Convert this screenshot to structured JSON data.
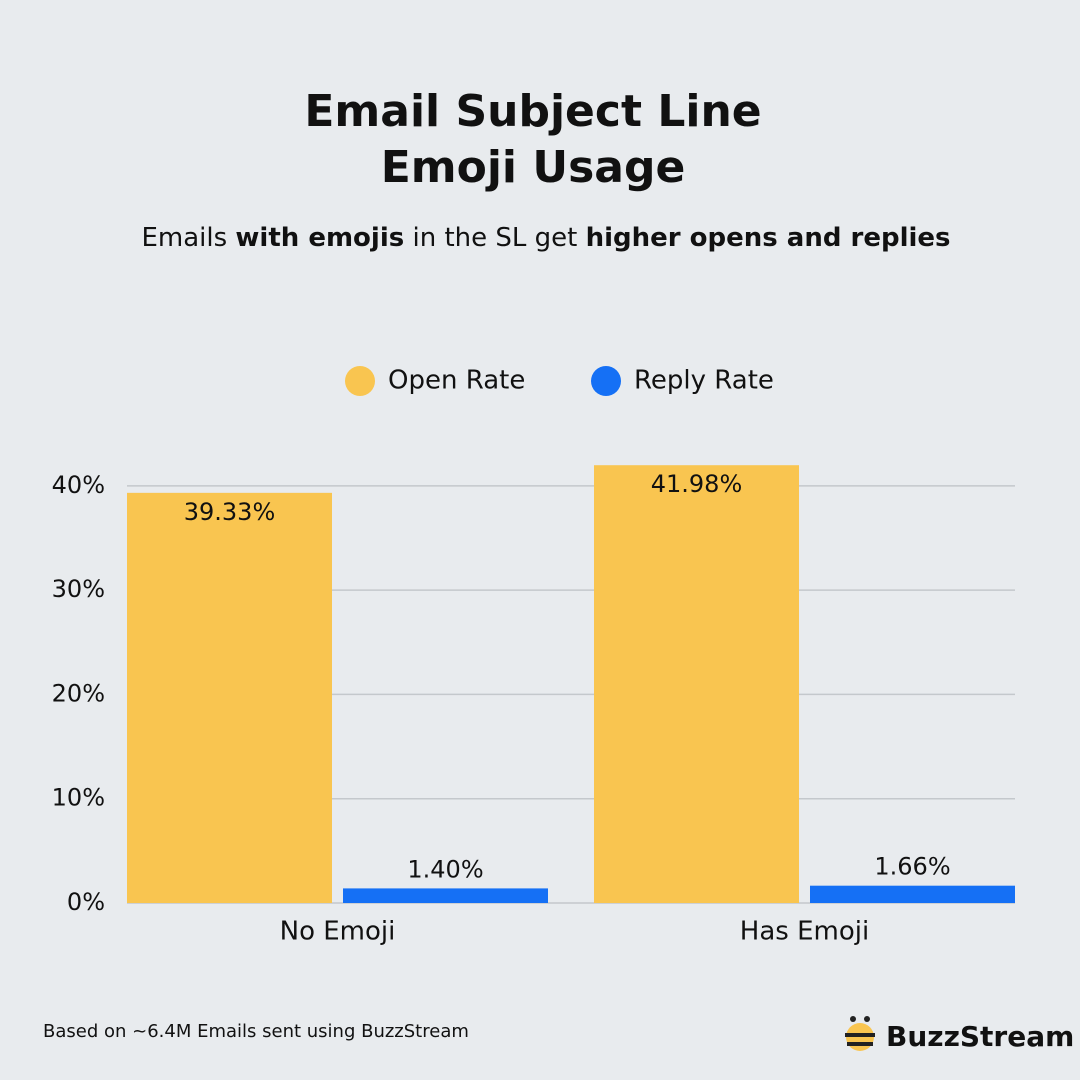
{
  "chart_data": {
    "type": "bar",
    "title": [
      "Email Subject Line",
      "Emoji Usage"
    ],
    "subtitle": [
      "Emails ",
      "with emojis",
      " in the SL get ",
      "higher opens and replies"
    ],
    "categories": [
      "No Emoji",
      "Has Emoji"
    ],
    "series": [
      {
        "name": "Open Rate",
        "color": "#f9c550",
        "values": [
          39.33,
          41.98
        ],
        "value_labels": [
          "39.33%",
          "41.98%"
        ]
      },
      {
        "name": "Reply Rate",
        "color": "#1570f5",
        "values": [
          1.4,
          1.66
        ],
        "value_labels": [
          "1.40%",
          "1.66%"
        ]
      }
    ],
    "ylim": [
      0,
      42
    ],
    "yticks": [
      {
        "value": 0,
        "label": "0%"
      },
      {
        "value": 10,
        "label": "10%"
      },
      {
        "value": 20,
        "label": "20%"
      },
      {
        "value": 30,
        "label": "30%"
      },
      {
        "value": 40,
        "label": "40%"
      }
    ],
    "grid": true,
    "footnote": "Based on ~6.4M Emails sent using BuzzStream",
    "brand": "BuzzStream"
  }
}
